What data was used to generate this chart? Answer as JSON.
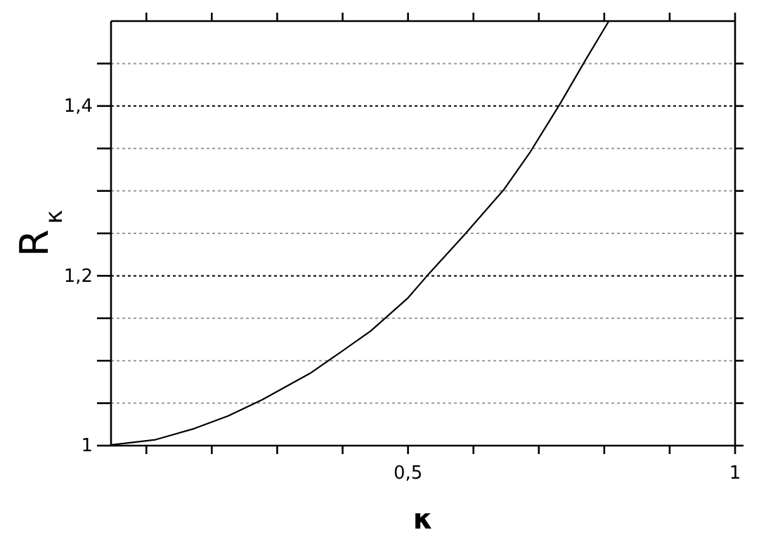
{
  "chart_data": {
    "type": "line",
    "xlabel": "κ",
    "ylabel": "R$_{κ}$",
    "x": [
      0.047,
      0.114,
      0.173,
      0.225,
      0.277,
      0.35,
      0.395,
      0.443,
      0.5,
      0.528,
      0.587,
      0.647,
      0.687,
      0.732,
      0.772,
      0.807
    ],
    "series": [
      {
        "color": "#000000",
        "values": [
          1.001,
          1.007,
          1.02,
          1.035,
          1.054,
          1.085,
          1.109,
          1.135,
          1.174,
          1.199,
          1.249,
          1.302,
          1.346,
          1.402,
          1.455,
          1.5
        ]
      }
    ],
    "xlim": [
      0.046,
      1
    ],
    "ylim": [
      1,
      1.5
    ],
    "xticks": [
      {
        "value": 0.1,
        "label": null
      },
      {
        "value": 0.2,
        "label": null
      },
      {
        "value": 0.3,
        "label": null
      },
      {
        "value": 0.4,
        "label": null
      },
      {
        "value": 0.5,
        "label": "0,5"
      },
      {
        "value": 0.6,
        "label": null
      },
      {
        "value": 0.7,
        "label": null
      },
      {
        "value": 0.8,
        "label": null
      },
      {
        "value": 0.9,
        "label": null
      },
      1
    ],
    "yticks": [
      1,
      {
        "value": 1.05,
        "label": null
      },
      {
        "value": 1.1,
        "label": null
      },
      {
        "value": 1.15,
        "label": null
      },
      {
        "value": 1.2,
        "label": "1,2"
      },
      {
        "value": 1.25,
        "label": null
      },
      {
        "value": 1.3,
        "label": null
      },
      {
        "value": 1.35,
        "label": null
      },
      {
        "value": 1.4,
        "label": "1,4"
      },
      {
        "value": 1.45,
        "label": null
      }
    ],
    "grid": "y",
    "marker": "none",
    "line_style": "solid"
  }
}
